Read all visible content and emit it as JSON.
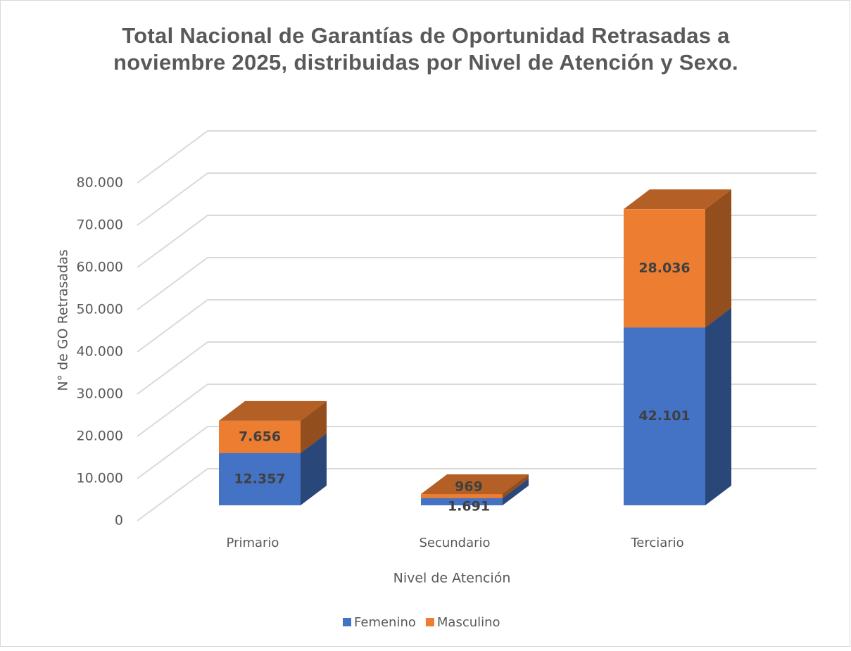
{
  "chart_data": {
    "type": "bar3d_stacked",
    "title": "Total Nacional de Garantías de Oportunidad Retrasadas a noviembre 2025, distribuidas por Nivel de Atención y Sexo.",
    "x_label": "Nivel de Atención",
    "y_label": "N° de GO Retrasadas",
    "categories": [
      "Primario",
      "Secundario",
      "Terciario"
    ],
    "series": [
      {
        "name": "Femenino",
        "color": "#4472c4",
        "values": [
          12357,
          1691,
          42101
        ],
        "value_labels": [
          "12.357",
          "1.691",
          "42.101"
        ]
      },
      {
        "name": "Masculino",
        "color": "#ed7d31",
        "values": [
          7656,
          969,
          28036
        ],
        "value_labels": [
          "7.656",
          "969",
          "28.036"
        ]
      }
    ],
    "ylim": [
      0,
      80000
    ],
    "yticks": [
      0,
      {
        "value": 10000,
        "label": "10.000"
      },
      {
        "value": 20000,
        "label": "20.000"
      },
      {
        "value": 30000,
        "label": "30.000"
      },
      {
        "value": 40000,
        "label": "40.000"
      },
      {
        "value": 50000,
        "label": "50.000"
      },
      {
        "value": 60000,
        "label": "60.000"
      },
      {
        "value": 70000,
        "label": "70.000"
      },
      {
        "value": 80000,
        "label": "80.000"
      }
    ],
    "grid": true,
    "legend": "bottom"
  }
}
